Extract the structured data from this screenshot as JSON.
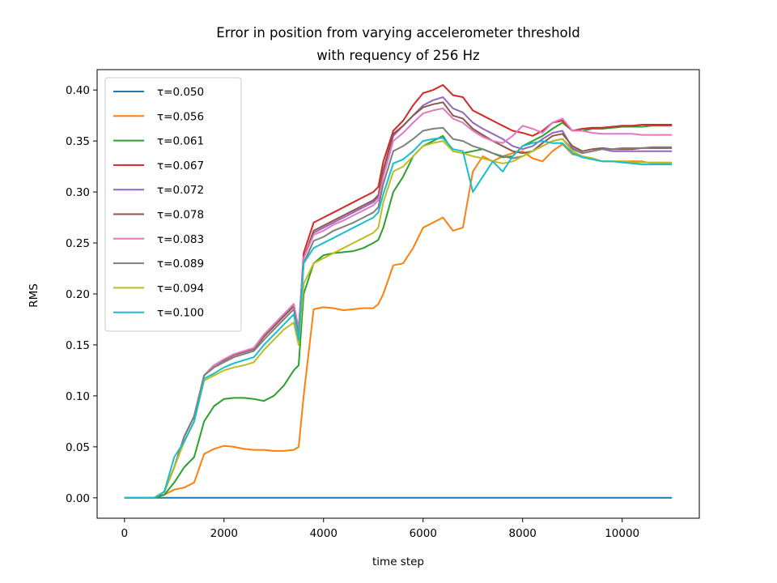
{
  "chart_data": {
    "type": "line",
    "title": [
      "Error in position from varying accelerometer threshold",
      "with requency of 256 Hz"
    ],
    "xlabel": "time step",
    "ylabel": "RMS",
    "xlim": [
      -550,
      11550
    ],
    "ylim": [
      -0.02,
      0.42
    ],
    "xticks": [
      0,
      2000,
      4000,
      6000,
      8000,
      10000
    ],
    "xtick_labels": [
      "0",
      "2000",
      "4000",
      "6000",
      "8000",
      "10000"
    ],
    "yticks": [
      0.0,
      0.05,
      0.1,
      0.15,
      0.2,
      0.25,
      0.3,
      0.35,
      0.4
    ],
    "ytick_labels": [
      "0.00",
      "0.05",
      "0.10",
      "0.15",
      "0.20",
      "0.25",
      "0.30",
      "0.35",
      "0.40"
    ],
    "grid": false,
    "legend_position": "upper-left",
    "x": [
      0,
      600,
      800,
      1000,
      1200,
      1400,
      1600,
      1800,
      2000,
      2200,
      2400,
      2600,
      2800,
      3000,
      3200,
      3400,
      3500,
      3600,
      3800,
      4000,
      4200,
      4400,
      4600,
      4800,
      5000,
      5100,
      5200,
      5400,
      5600,
      5800,
      6000,
      6200,
      6400,
      6600,
      6800,
      7000,
      7200,
      7400,
      7600,
      7800,
      8000,
      8200,
      8400,
      8600,
      8800,
      9000,
      9200,
      9400,
      9600,
      9800,
      10000,
      10200,
      10400,
      10600,
      10800,
      11000
    ],
    "series": [
      {
        "name": "τ=0.050",
        "color": "#1f77b4",
        "values": [
          0,
          0,
          0,
          0,
          0,
          0,
          0,
          0,
          0,
          0,
          0,
          0,
          0,
          0,
          0,
          0,
          0,
          0,
          0,
          0,
          0,
          0,
          0,
          0,
          0,
          0,
          0,
          0,
          0,
          0,
          0,
          0,
          0,
          0,
          0,
          0,
          0,
          0,
          0,
          0,
          0,
          0,
          0,
          0,
          0,
          0,
          0,
          0,
          0,
          0,
          0,
          0,
          0,
          0,
          0,
          0
        ]
      },
      {
        "name": "τ=0.056",
        "color": "#ff7f0e",
        "values": [
          0,
          0,
          0.003,
          0.008,
          0.01,
          0.015,
          0.043,
          0.048,
          0.051,
          0.05,
          0.048,
          0.047,
          0.047,
          0.046,
          0.046,
          0.047,
          0.05,
          0.1,
          0.185,
          0.187,
          0.186,
          0.184,
          0.185,
          0.186,
          0.186,
          0.19,
          0.2,
          0.228,
          0.23,
          0.245,
          0.265,
          0.27,
          0.275,
          0.262,
          0.265,
          0.32,
          0.335,
          0.33,
          0.335,
          0.338,
          0.34,
          0.333,
          0.33,
          0.34,
          0.347,
          0.337,
          0.335,
          0.333,
          0.33,
          0.33,
          0.33,
          0.33,
          0.33,
          0.328,
          0.328,
          0.328
        ]
      },
      {
        "name": "τ=0.061",
        "color": "#2ca02c",
        "values": [
          0,
          0,
          0.003,
          0.015,
          0.03,
          0.04,
          0.075,
          0.09,
          0.097,
          0.098,
          0.098,
          0.097,
          0.095,
          0.1,
          0.11,
          0.125,
          0.13,
          0.2,
          0.23,
          0.238,
          0.24,
          0.241,
          0.242,
          0.245,
          0.25,
          0.253,
          0.265,
          0.3,
          0.315,
          0.335,
          0.345,
          0.35,
          0.355,
          0.34,
          0.338,
          0.34,
          0.342,
          0.338,
          0.334,
          0.335,
          0.345,
          0.35,
          0.355,
          0.362,
          0.368,
          0.36,
          0.36,
          0.362,
          0.362,
          0.363,
          0.364,
          0.364,
          0.364,
          0.365,
          0.365,
          0.365
        ]
      },
      {
        "name": "τ=0.067",
        "color": "#d62728",
        "values": [
          0,
          0,
          0.006,
          0.03,
          0.06,
          0.08,
          0.12,
          0.13,
          0.135,
          0.14,
          0.143,
          0.147,
          0.16,
          0.17,
          0.18,
          0.19,
          0.165,
          0.24,
          0.27,
          0.275,
          0.28,
          0.285,
          0.29,
          0.295,
          0.3,
          0.305,
          0.33,
          0.36,
          0.37,
          0.385,
          0.397,
          0.4,
          0.405,
          0.395,
          0.393,
          0.38,
          0.375,
          0.37,
          0.365,
          0.36,
          0.358,
          0.355,
          0.36,
          0.368,
          0.37,
          0.36,
          0.362,
          0.363,
          0.363,
          0.364,
          0.365,
          0.365,
          0.366,
          0.366,
          0.366,
          0.366
        ]
      },
      {
        "name": "τ=0.072",
        "color": "#9467bd",
        "values": [
          0,
          0,
          0.006,
          0.03,
          0.06,
          0.08,
          0.12,
          0.13,
          0.135,
          0.14,
          0.143,
          0.146,
          0.158,
          0.168,
          0.178,
          0.188,
          0.163,
          0.235,
          0.26,
          0.265,
          0.27,
          0.275,
          0.28,
          0.285,
          0.29,
          0.295,
          0.32,
          0.355,
          0.365,
          0.375,
          0.385,
          0.39,
          0.393,
          0.382,
          0.378,
          0.368,
          0.362,
          0.357,
          0.352,
          0.345,
          0.342,
          0.345,
          0.352,
          0.358,
          0.36,
          0.343,
          0.338,
          0.34,
          0.342,
          0.34,
          0.34,
          0.34,
          0.34,
          0.34,
          0.34,
          0.34
        ]
      },
      {
        "name": "τ=0.078",
        "color": "#8c564b",
        "values": [
          0,
          0,
          0.006,
          0.03,
          0.06,
          0.08,
          0.12,
          0.13,
          0.135,
          0.14,
          0.143,
          0.146,
          0.158,
          0.168,
          0.178,
          0.188,
          0.163,
          0.235,
          0.262,
          0.267,
          0.272,
          0.277,
          0.282,
          0.287,
          0.292,
          0.297,
          0.322,
          0.357,
          0.365,
          0.375,
          0.383,
          0.386,
          0.388,
          0.375,
          0.372,
          0.362,
          0.356,
          0.35,
          0.345,
          0.34,
          0.338,
          0.34,
          0.348,
          0.355,
          0.357,
          0.345,
          0.34,
          0.342,
          0.343,
          0.342,
          0.342,
          0.342,
          0.343,
          0.343,
          0.343,
          0.343
        ]
      },
      {
        "name": "τ=0.083",
        "color": "#e377c2",
        "values": [
          0,
          0,
          0.006,
          0.03,
          0.06,
          0.08,
          0.12,
          0.13,
          0.136,
          0.141,
          0.144,
          0.147,
          0.16,
          0.17,
          0.18,
          0.19,
          0.165,
          0.235,
          0.258,
          0.262,
          0.268,
          0.272,
          0.277,
          0.282,
          0.287,
          0.292,
          0.315,
          0.35,
          0.358,
          0.368,
          0.377,
          0.38,
          0.382,
          0.372,
          0.368,
          0.36,
          0.354,
          0.35,
          0.348,
          0.355,
          0.365,
          0.362,
          0.358,
          0.368,
          0.372,
          0.36,
          0.36,
          0.358,
          0.357,
          0.357,
          0.357,
          0.357,
          0.356,
          0.356,
          0.356,
          0.356
        ]
      },
      {
        "name": "τ=0.089",
        "color": "#7f7f7f",
        "values": [
          0,
          0,
          0.006,
          0.03,
          0.06,
          0.08,
          0.12,
          0.128,
          0.133,
          0.138,
          0.141,
          0.144,
          0.155,
          0.165,
          0.175,
          0.185,
          0.16,
          0.23,
          0.252,
          0.256,
          0.262,
          0.266,
          0.27,
          0.275,
          0.28,
          0.285,
          0.308,
          0.34,
          0.345,
          0.352,
          0.36,
          0.362,
          0.363,
          0.352,
          0.35,
          0.345,
          0.342,
          0.338,
          0.335,
          0.333,
          0.335,
          0.34,
          0.345,
          0.35,
          0.352,
          0.342,
          0.338,
          0.34,
          0.342,
          0.342,
          0.343,
          0.343,
          0.343,
          0.344,
          0.344,
          0.344
        ]
      },
      {
        "name": "τ=0.094",
        "color": "#bcbd22",
        "values": [
          0,
          0,
          0.006,
          0.03,
          0.055,
          0.075,
          0.115,
          0.12,
          0.125,
          0.128,
          0.13,
          0.133,
          0.145,
          0.155,
          0.165,
          0.172,
          0.15,
          0.21,
          0.23,
          0.235,
          0.24,
          0.245,
          0.25,
          0.255,
          0.26,
          0.265,
          0.29,
          0.32,
          0.325,
          0.335,
          0.345,
          0.348,
          0.35,
          0.34,
          0.338,
          0.335,
          0.333,
          0.33,
          0.328,
          0.33,
          0.335,
          0.34,
          0.345,
          0.35,
          0.352,
          0.34,
          0.335,
          0.333,
          0.33,
          0.33,
          0.33,
          0.329,
          0.329,
          0.329,
          0.329,
          0.329
        ]
      },
      {
        "name": "τ=0.100",
        "color": "#17becf",
        "values": [
          0,
          0,
          0.006,
          0.04,
          0.055,
          0.075,
          0.117,
          0.122,
          0.128,
          0.132,
          0.135,
          0.138,
          0.15,
          0.16,
          0.17,
          0.18,
          0.155,
          0.23,
          0.245,
          0.25,
          0.255,
          0.26,
          0.265,
          0.27,
          0.275,
          0.28,
          0.298,
          0.328,
          0.332,
          0.34,
          0.35,
          0.352,
          0.353,
          0.342,
          0.34,
          0.3,
          0.315,
          0.33,
          0.32,
          0.335,
          0.345,
          0.348,
          0.35,
          0.348,
          0.348,
          0.338,
          0.334,
          0.332,
          0.33,
          0.33,
          0.329,
          0.328,
          0.327,
          0.327,
          0.327,
          0.327
        ]
      }
    ]
  }
}
